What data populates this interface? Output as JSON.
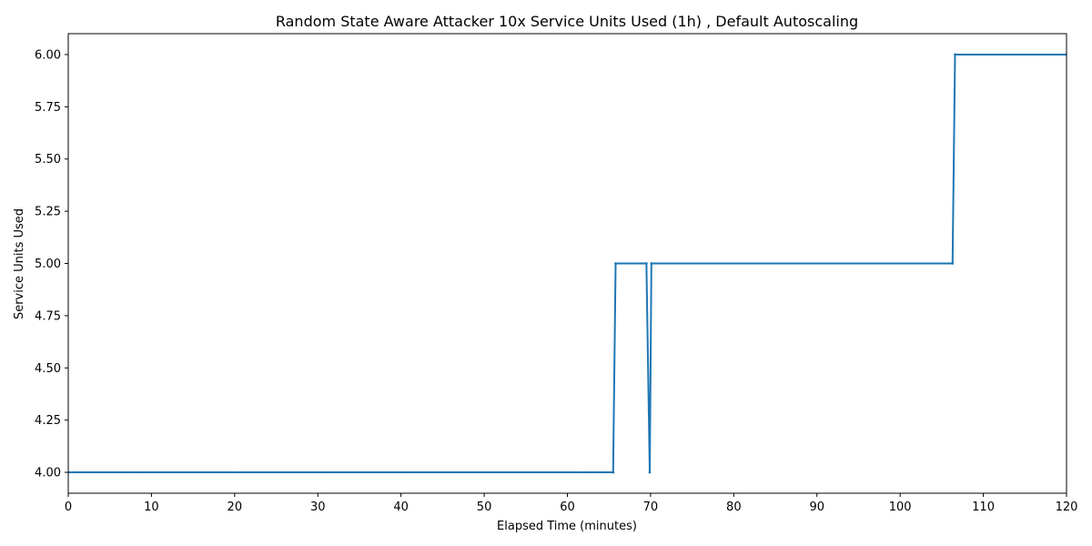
{
  "chart_data": {
    "type": "line",
    "title": "Random State Aware Attacker 10x Service Units Used (1h) , Default Autoscaling",
    "xlabel": "Elapsed Time (minutes)",
    "ylabel": "Service Units Used",
    "xlim": [
      0,
      120
    ],
    "ylim": [
      3.9,
      6.1
    ],
    "xticks": [
      0,
      10,
      20,
      30,
      40,
      50,
      60,
      70,
      80,
      90,
      100,
      110,
      120
    ],
    "yticks": [
      4.0,
      4.25,
      4.5,
      4.75,
      5.0,
      5.25,
      5.5,
      5.75,
      6.0
    ],
    "ytick_labels": [
      "4.00",
      "4.25",
      "4.50",
      "4.75",
      "5.00",
      "5.25",
      "5.50",
      "5.75",
      "6.00"
    ],
    "grid": false,
    "series": [
      {
        "color": "#1f77b4",
        "marker": "small-dot",
        "x": [
          0,
          65.5,
          65.8,
          69.5,
          69.9,
          70.1,
          106.3,
          106.6,
          120
        ],
        "y": [
          4.0,
          4.0,
          5.0,
          5.0,
          4.0,
          5.0,
          5.0,
          6.0,
          6.0
        ]
      }
    ]
  }
}
